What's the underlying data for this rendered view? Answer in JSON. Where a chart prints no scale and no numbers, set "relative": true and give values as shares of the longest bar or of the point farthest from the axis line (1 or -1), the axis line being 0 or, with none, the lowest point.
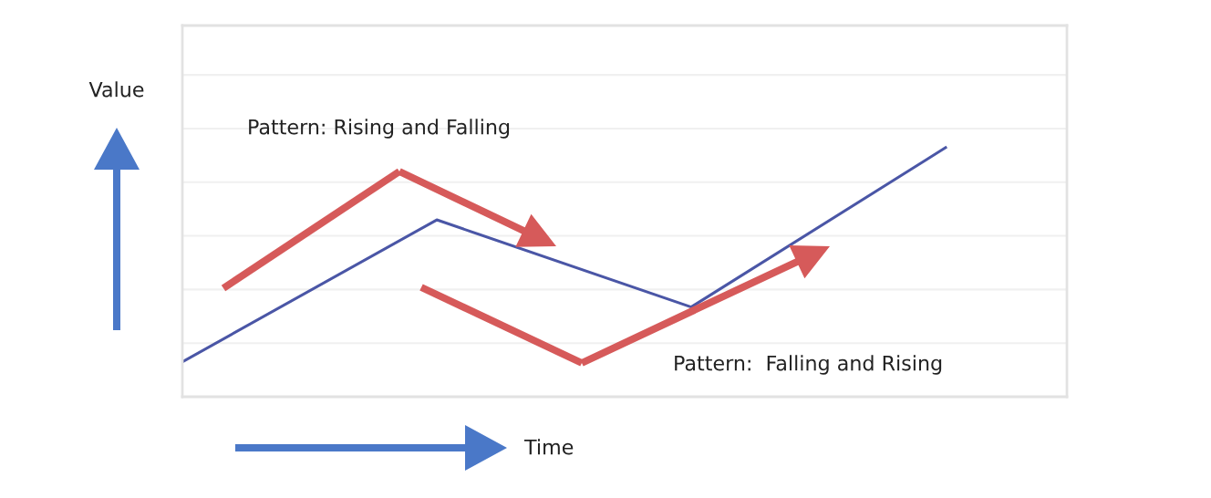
{
  "chart_data": {
    "type": "line",
    "relative": true,
    "xlabel": "Time",
    "ylabel": "Value",
    "categories": [
      null,
      null,
      null,
      null
    ],
    "series": [
      {
        "color": "#4a56a6",
        "values": [
          0.14,
          0.71,
          0.36,
          1
        ]
      }
    ],
    "grid": "y",
    "marker": "none",
    "line_style": "solid",
    "annotations": [
      "Pattern: Rising and Falling",
      "Pattern:  Falling and Rising"
    ]
  }
}
